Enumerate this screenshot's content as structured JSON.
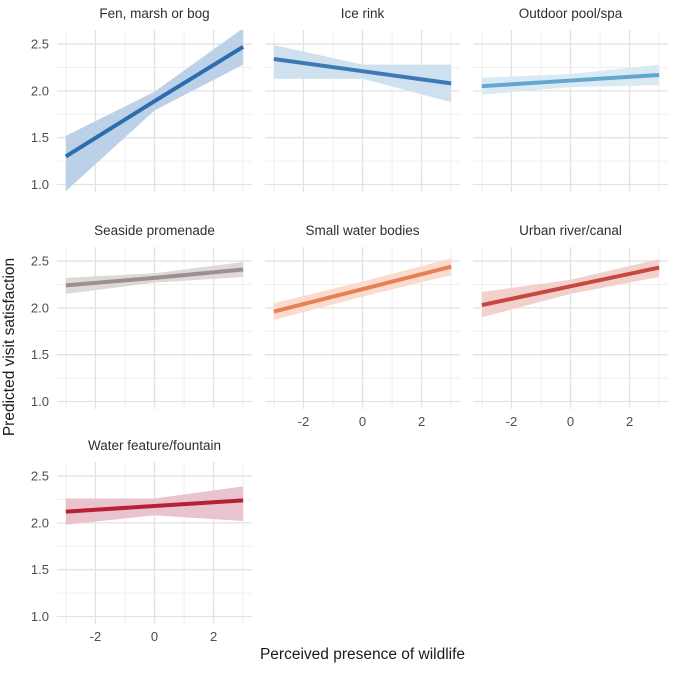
{
  "figure": {
    "background": "#ffffff",
    "grid_major_color": "#e2e2e2",
    "grid_minor_color": "#efefef",
    "tick_label_color": "#4d4d4d",
    "facet_title_color": "#2e2e2e",
    "axis_title_color": "#1a1a1a"
  },
  "chart_data": {
    "type": "line",
    "title": "",
    "xlabel": "Perceived presence of wildlife",
    "ylabel": "Predicted visit satisfaction",
    "xlim": [
      -3.3,
      3.3
    ],
    "ylim": [
      0.92,
      2.65
    ],
    "x_ticks": [
      -2,
      0,
      2
    ],
    "x_tick_labels": [
      "-2",
      "0",
      "2"
    ],
    "x_minor": [
      -3,
      -1,
      1,
      3
    ],
    "y_ticks": [
      1.0,
      1.5,
      2.0,
      2.5
    ],
    "y_tick_labels": [
      "1.0",
      "1.5",
      "2.0",
      "2.5"
    ],
    "y_minor": [
      1.25,
      1.75,
      2.25
    ],
    "grid": true,
    "legend": "none",
    "facet_columns": 3,
    "facets": [
      {
        "label": "Fen, marsh or bog",
        "line_color": "#2c6db1",
        "band_color": "#bcd1e8",
        "x": [
          -3,
          0,
          3
        ],
        "fit": [
          1.3,
          1.89,
          2.47
        ],
        "upper": [
          1.52,
          1.99,
          2.67
        ],
        "lower": [
          0.93,
          1.79,
          2.28
        ]
      },
      {
        "label": "Ice rink",
        "line_color": "#3d7ab5",
        "band_color": "#cfe0ee",
        "x": [
          -3,
          0,
          3
        ],
        "fit": [
          2.34,
          2.21,
          2.08
        ],
        "upper": [
          2.49,
          2.28,
          2.28
        ],
        "lower": [
          2.13,
          2.13,
          1.88
        ]
      },
      {
        "label": "Outdoor pool/spa",
        "line_color": "#63a6d0",
        "band_color": "#daeaf4",
        "x": [
          -3,
          0,
          3
        ],
        "fit": [
          2.05,
          2.11,
          2.17
        ],
        "upper": [
          2.14,
          2.18,
          2.28
        ],
        "lower": [
          1.96,
          2.04,
          2.06
        ]
      },
      {
        "label": "Seaside promenade",
        "line_color": "#9b908f",
        "band_color": "#ded8d7",
        "x": [
          -3,
          0,
          3
        ],
        "fit": [
          2.24,
          2.32,
          2.41
        ],
        "upper": [
          2.32,
          2.37,
          2.49
        ],
        "lower": [
          2.15,
          2.27,
          2.33
        ]
      },
      {
        "label": "Small water bodies",
        "line_color": "#ea7e54",
        "band_color": "#f9dcce",
        "x": [
          -3,
          0,
          3
        ],
        "fit": [
          1.96,
          2.2,
          2.44
        ],
        "upper": [
          2.05,
          2.28,
          2.53
        ],
        "lower": [
          1.87,
          2.12,
          2.35
        ]
      },
      {
        "label": "Urban river/canal",
        "line_color": "#c8473e",
        "band_color": "#f2d0cb",
        "x": [
          -3,
          0,
          3
        ],
        "fit": [
          2.03,
          2.23,
          2.43
        ],
        "upper": [
          2.17,
          2.3,
          2.52
        ],
        "lower": [
          1.9,
          2.15,
          2.33
        ]
      },
      {
        "label": "Water feature/fountain",
        "line_color": "#b92036",
        "band_color": "#eac4cc",
        "x": [
          -3,
          0,
          3
        ],
        "fit": [
          2.12,
          2.18,
          2.24
        ],
        "upper": [
          2.26,
          2.26,
          2.39
        ],
        "lower": [
          1.98,
          2.08,
          2.02
        ]
      }
    ]
  }
}
